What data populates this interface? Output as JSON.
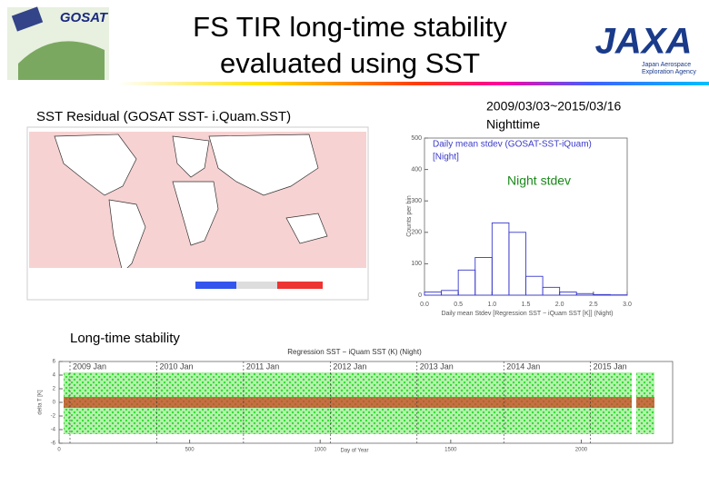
{
  "header": {
    "title_lines": [
      "FS TIR long-time stability",
      "evaluated using SST"
    ],
    "gosat_logo": "GOSAT",
    "jaxa_logo": "JAXA",
    "jaxa_subtitle": [
      "Japan Aerospace",
      "Exploration Agency"
    ]
  },
  "map_panel": {
    "title": "SST Residual (GOSAT SST- i.Quam.SST)"
  },
  "histogram_panel": {
    "date_range": "2009/03/03~2015/03/16",
    "period": "Nighttime",
    "chart_title_lines": [
      "Daily mean stdev (GOSAT-SST-iQuam)",
      "[Night]"
    ],
    "annotation": "Night   stdev",
    "y_label": "Counts per bin",
    "x_label": "Daily mean Stdev [Regression SST − iQuam SST [K]] (Night)",
    "color": "#3a3acc",
    "xlim": [
      0,
      3.0
    ],
    "ylim": [
      0,
      500
    ],
    "xticks": [
      {
        "value": 0,
        "label": "0.0"
      },
      {
        "value": 0.5,
        "label": "0.5"
      },
      {
        "value": 1,
        "label": "1.0"
      },
      {
        "value": 1.5,
        "label": "1.5"
      },
      {
        "value": 2,
        "label": "2.0"
      },
      {
        "value": 2.5,
        "label": "2.5"
      },
      {
        "value": 3,
        "label": "3.0"
      }
    ],
    "yticks": [
      0,
      100,
      200,
      300,
      400,
      500
    ],
    "bins": [
      0,
      0.25,
      0.5,
      0.75,
      1.0,
      1.25,
      1.5,
      1.75,
      2.0,
      2.25,
      2.5,
      2.75,
      3.0
    ],
    "counts": [
      10,
      15,
      80,
      120,
      230,
      200,
      60,
      25,
      10,
      5,
      2,
      1
    ]
  },
  "timeseries_panel": {
    "label": "Long-time stability",
    "title": "Regression SST − iQuam SST (K) (Night)",
    "year_labels": [
      "2009 Jan",
      "2010 Jan",
      "2011 Jan",
      "2012 Jan",
      "2013 Jan",
      "2014 Jan",
      "2015 Jan"
    ],
    "x_label": "Day of Year",
    "y_label": "delta T [K]",
    "xlim": [
      0,
      2350
    ],
    "ylim": [
      -6,
      6
    ],
    "xticks": [
      0,
      500,
      1000,
      1500,
      2000
    ],
    "yticks": [
      -6,
      -4,
      -2,
      0,
      2,
      4,
      6
    ]
  }
}
